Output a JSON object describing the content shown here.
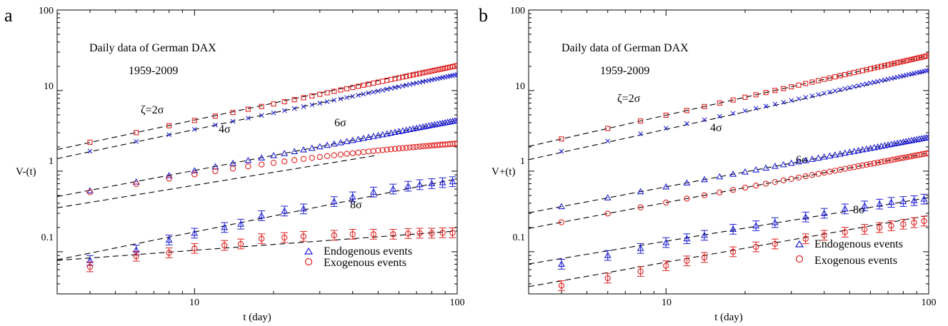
{
  "panels": [
    {
      "letter": "a",
      "ylabel": "V-(t)",
      "xlabel": "t (day)",
      "xtick_labels": [
        "10",
        "100"
      ],
      "ytick_labels": [
        "0.1",
        "1",
        "10",
        "100"
      ],
      "title_line1": "Daily data of German DAX",
      "title_line2": "1959-2009",
      "curve_labels": [
        "ζ=2σ",
        "4σ",
        "6σ",
        "8σ"
      ],
      "legend": [
        "Endogenous events",
        "Exogenous events"
      ]
    },
    {
      "letter": "b",
      "ylabel": "V+(t)",
      "xlabel": "t (day)",
      "xtick_labels": [
        "10",
        "100"
      ],
      "ytick_labels": [
        "0.1",
        "1",
        "10",
        "100"
      ],
      "title_line1": "Daily data of German DAX",
      "title_line2": "1959-2009",
      "curve_labels": [
        "ζ=2σ",
        "4σ",
        "6σ",
        "8σ"
      ],
      "legend": [
        "Endogenous events",
        "Exogenous events"
      ]
    }
  ],
  "chart_data": [
    {
      "type": "scatter",
      "xscale": "log",
      "yscale": "log",
      "xlim": [
        3,
        100
      ],
      "ylim": [
        0.03,
        100
      ],
      "xlabel": "t (day)",
      "ylabel": "V-(t)",
      "grid": false,
      "legend_position": "bottom-right",
      "colors": {
        "endogenous": "#1f1fd6",
        "exogenous": "#e02020",
        "fit": "#000000"
      },
      "series": [
        {
          "name": "ζ=2σ",
          "group": "exogenous",
          "marker": "square",
          "dense": true,
          "t_start": 4,
          "t_end": 100,
          "step": 2,
          "law": [
            0.89,
            0.68
          ],
          "fit": [
            0.86,
            0.7
          ],
          "fit_range": [
            3,
            100
          ]
        },
        {
          "name": "4σ",
          "group": "endogenous",
          "marker": "cross",
          "dense": true,
          "t_start": 4,
          "t_end": 100,
          "step": 2,
          "law": [
            0.69,
            0.68
          ],
          "fit": [
            0.67,
            0.69
          ],
          "fit_range": [
            3,
            100
          ]
        },
        {
          "name": "6σ",
          "group": "endogenous",
          "marker": "triangle",
          "dense": true,
          "t_start": 4,
          "t_end": 100,
          "step": 2,
          "law": [
            0.24,
            0.625
          ],
          "fit": [
            0.245,
            0.62
          ],
          "fit_range": [
            3,
            100
          ]
        },
        {
          "name": "6σ",
          "group": "exogenous",
          "marker": "circle",
          "dense": true,
          "t_start": 4,
          "t_end": 100,
          "step": 2,
          "law": [
            0.16,
            0.7
          ],
          "sat": 2.2,
          "fit": [
            0.195,
            0.535
          ],
          "fit_range": [
            3,
            50
          ]
        },
        {
          "name": "8σ",
          "group": "endogenous",
          "marker": "triangle",
          "errorbars": true,
          "x": [
            4,
            6,
            8,
            10,
            13,
            15,
            18,
            22,
            26,
            34,
            40,
            48,
            57,
            65,
            72,
            80,
            88,
            96
          ],
          "y": [
            0.078,
            0.105,
            0.14,
            0.17,
            0.2,
            0.22,
            0.28,
            0.32,
            0.34,
            0.42,
            0.48,
            0.55,
            0.6,
            0.65,
            0.68,
            0.7,
            0.72,
            0.74
          ],
          "fit": [
            0.0385,
            0.66
          ],
          "fit_range": [
            3,
            100
          ]
        },
        {
          "name": "8σ",
          "group": "exogenous",
          "marker": "circle",
          "errorbars": true,
          "x": [
            4,
            6,
            8,
            10,
            13,
            15,
            18,
            22,
            26,
            34,
            40,
            48,
            57,
            65,
            72,
            80,
            88,
            96
          ],
          "y": [
            0.065,
            0.088,
            0.097,
            0.11,
            0.12,
            0.125,
            0.145,
            0.15,
            0.155,
            0.16,
            0.165,
            0.165,
            0.165,
            0.168,
            0.17,
            0.17,
            0.172,
            0.172
          ],
          "fit": [
            0.06,
            0.24
          ],
          "fit_range": [
            3,
            100
          ]
        }
      ]
    },
    {
      "type": "scatter",
      "xscale": "log",
      "yscale": "log",
      "xlim": [
        3,
        100
      ],
      "ylim": [
        0.03,
        100
      ],
      "xlabel": "t (day)",
      "ylabel": "V+(t)",
      "grid": false,
      "legend_position": "bottom-right",
      "colors": {
        "endogenous": "#1f1fd6",
        "exogenous": "#e02020",
        "fit": "#000000"
      },
      "series": [
        {
          "name": "ζ=2σ",
          "group": "exogenous",
          "marker": "square",
          "dense": true,
          "t_start": 4,
          "t_end": 100,
          "step": 2,
          "law": [
            0.9,
            0.74
          ],
          "fit": [
            0.9,
            0.74
          ],
          "fit_range": [
            3,
            100
          ]
        },
        {
          "name": "4σ",
          "group": "endogenous",
          "marker": "cross",
          "dense": true,
          "t_start": 4,
          "t_end": 100,
          "step": 2,
          "law": [
            0.65,
            0.72
          ],
          "fit": [
            0.63,
            0.72
          ],
          "fit_range": [
            3,
            100
          ]
        },
        {
          "name": "6σ",
          "group": "endogenous",
          "marker": "triangle",
          "dense": true,
          "t_start": 4,
          "t_end": 100,
          "step": 2,
          "law": [
            0.155,
            0.615
          ],
          "fit": [
            0.155,
            0.615
          ],
          "fit_range": [
            3,
            100
          ]
        },
        {
          "name": "6σ",
          "group": "exogenous",
          "marker": "circle",
          "dense": true,
          "t_start": 4,
          "t_end": 100,
          "step": 2,
          "law": [
            0.099,
            0.615
          ],
          "fit": [
            0.099,
            0.615
          ],
          "fit_range": [
            3,
            100
          ]
        },
        {
          "name": "8σ",
          "group": "endogenous",
          "marker": "triangle",
          "errorbars": true,
          "x": [
            4,
            6,
            8,
            10,
            12,
            14,
            18,
            22,
            26,
            34,
            40,
            48,
            57,
            65,
            72,
            80,
            88,
            96
          ],
          "y": [
            0.07,
            0.09,
            0.11,
            0.13,
            0.145,
            0.16,
            0.19,
            0.21,
            0.23,
            0.27,
            0.3,
            0.34,
            0.37,
            0.39,
            0.41,
            0.42,
            0.43,
            0.45
          ],
          "fit": [
            0.039,
            0.54
          ],
          "fit_range": [
            3,
            100
          ]
        },
        {
          "name": "8σ",
          "group": "exogenous",
          "marker": "circle",
          "errorbars": true,
          "x": [
            4,
            6,
            8,
            10,
            12,
            14,
            18,
            22,
            26,
            34,
            40,
            48,
            57,
            65,
            72,
            80,
            88,
            96
          ],
          "y": [
            0.038,
            0.047,
            0.057,
            0.067,
            0.077,
            0.085,
            0.1,
            0.115,
            0.125,
            0.145,
            0.16,
            0.175,
            0.19,
            0.2,
            0.21,
            0.22,
            0.23,
            0.24
          ],
          "fit": [
            0.0195,
            0.58
          ],
          "fit_range": [
            3,
            100
          ]
        }
      ]
    }
  ]
}
